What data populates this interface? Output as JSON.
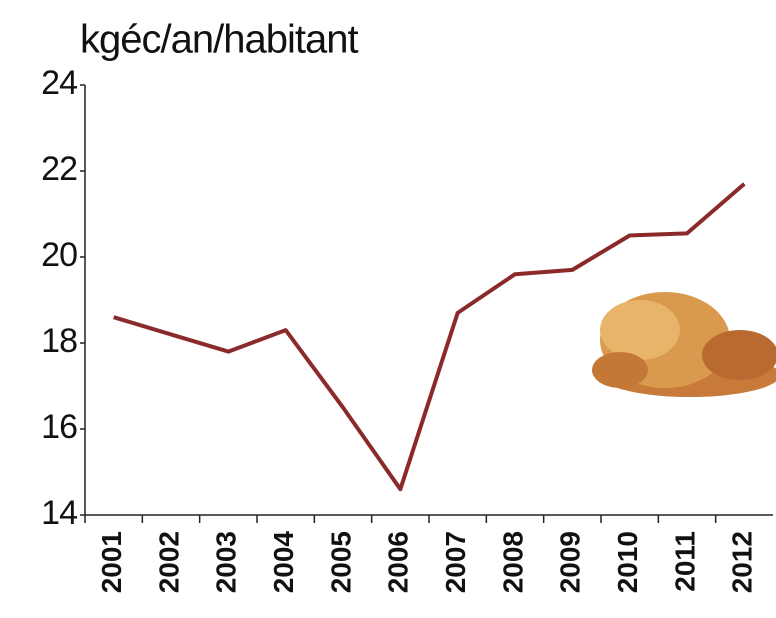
{
  "chart_data": {
    "type": "line",
    "title": "kgéc/an/habitant",
    "categories": [
      "2001",
      "2002",
      "2003",
      "2004",
      "2005",
      "2006",
      "2007",
      "2008",
      "2009",
      "2010",
      "2011",
      "2012"
    ],
    "series": [
      {
        "name": null,
        "color": "#8b2a2a",
        "values": [
          18.6,
          18.2,
          17.8,
          18.3,
          16.5,
          14.6,
          18.7,
          19.6,
          19.7,
          20.5,
          20.55,
          21.7
        ]
      }
    ],
    "ylim": [
      14,
      24
    ],
    "yticks": [
      14,
      16,
      18,
      20,
      22,
      24
    ],
    "grid": false
  }
}
